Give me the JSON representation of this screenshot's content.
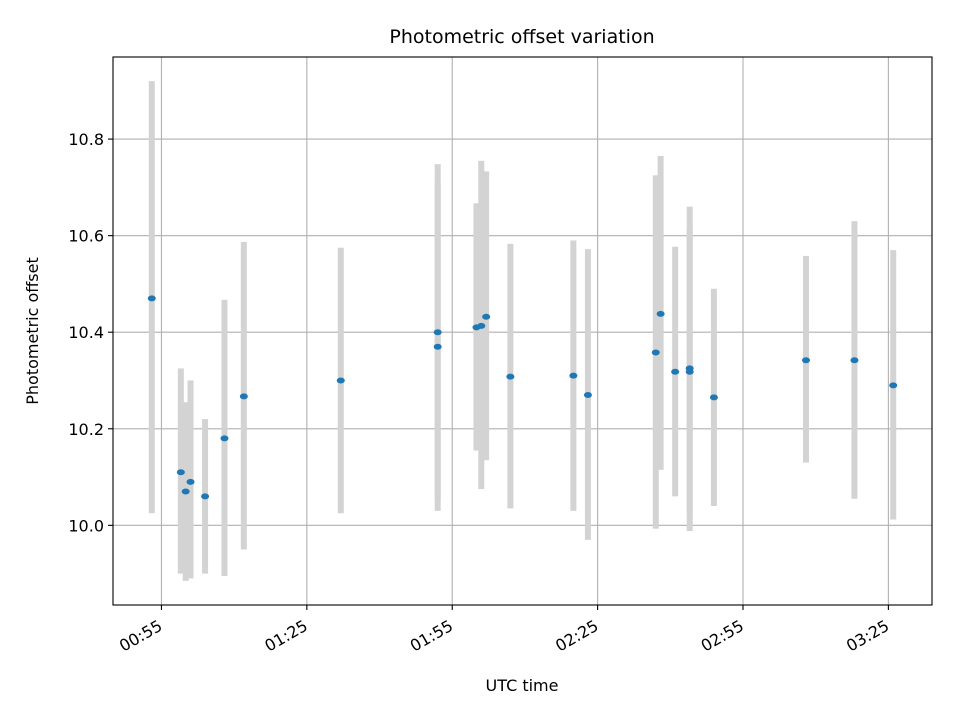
{
  "chart_data": {
    "type": "scatter",
    "title": "Photometric offset variation",
    "xlabel": "UTC time",
    "ylabel": "Photometric offset",
    "grid": true,
    "x_ticks": [
      "00:55",
      "01:25",
      "01:55",
      "02:25",
      "02:55",
      "03:25"
    ],
    "y_ticks": [
      "10.0",
      "10.2",
      "10.4",
      "10.6",
      "10.8"
    ],
    "xlim": [
      "00:45",
      "03:34"
    ],
    "ylim": [
      9.835,
      10.97
    ],
    "colors": {
      "points": "#1f77b4",
      "error_bars": "#d3d3d3",
      "grid": "#b0b0b0",
      "axes": "#000000"
    },
    "points": [
      {
        "x": "00:53",
        "y": 10.47,
        "err_low": 10.025,
        "err_high": 10.92
      },
      {
        "x": "00:59",
        "y": 10.11,
        "err_low": 9.9,
        "err_high": 10.325
      },
      {
        "x": "01:00",
        "y": 10.07,
        "err_low": 9.885,
        "err_high": 10.255
      },
      {
        "x": "01:01",
        "y": 10.09,
        "err_low": 9.89,
        "err_high": 10.3
      },
      {
        "x": "01:04",
        "y": 10.06,
        "err_low": 9.9,
        "err_high": 10.22
      },
      {
        "x": "01:08",
        "y": 10.18,
        "err_low": 9.895,
        "err_high": 10.467
      },
      {
        "x": "01:12",
        "y": 10.267,
        "err_low": 9.95,
        "err_high": 10.587
      },
      {
        "x": "01:32",
        "y": 10.3,
        "err_low": 10.025,
        "err_high": 10.575
      },
      {
        "x": "01:52",
        "y": 10.37,
        "err_low": 10.03,
        "err_high": 10.71
      },
      {
        "x": "01:52",
        "y": 10.4,
        "err_low": 10.055,
        "err_high": 10.748
      },
      {
        "x": "02:00",
        "y": 10.41,
        "err_low": 10.155,
        "err_high": 10.667
      },
      {
        "x": "02:01",
        "y": 10.413,
        "err_low": 10.075,
        "err_high": 10.755
      },
      {
        "x": "02:02",
        "y": 10.432,
        "err_low": 10.135,
        "err_high": 10.733
      },
      {
        "x": "02:07",
        "y": 10.308,
        "err_low": 10.035,
        "err_high": 10.583
      },
      {
        "x": "02:20",
        "y": 10.31,
        "err_low": 10.03,
        "err_high": 10.59
      },
      {
        "x": "02:23",
        "y": 10.27,
        "err_low": 9.97,
        "err_high": 10.572
      },
      {
        "x": "02:37",
        "y": 10.358,
        "err_low": 9.993,
        "err_high": 10.725
      },
      {
        "x": "02:38",
        "y": 10.438,
        "err_low": 10.115,
        "err_high": 10.765
      },
      {
        "x": "02:41",
        "y": 10.318,
        "err_low": 10.06,
        "err_high": 10.577
      },
      {
        "x": "02:44",
        "y": 10.325,
        "err_low": 9.988,
        "err_high": 10.66
      },
      {
        "x": "02:44",
        "y": 10.318,
        "err_low": 10.025,
        "err_high": 10.612
      },
      {
        "x": "02:49",
        "y": 10.265,
        "err_low": 10.04,
        "err_high": 10.49
      },
      {
        "x": "03:08",
        "y": 10.342,
        "err_low": 10.13,
        "err_high": 10.558
      },
      {
        "x": "03:18",
        "y": 10.342,
        "err_low": 10.055,
        "err_high": 10.63
      },
      {
        "x": "03:26",
        "y": 10.29,
        "err_low": 10.012,
        "err_high": 10.57
      }
    ]
  }
}
